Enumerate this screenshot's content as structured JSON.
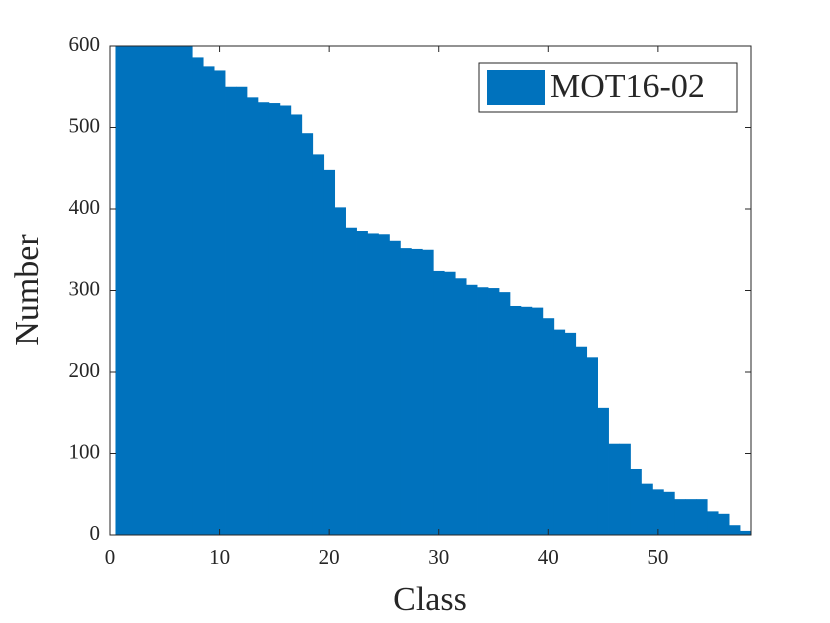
{
  "chart_data": {
    "type": "bar",
    "x_label": "Class",
    "y_label": "Number",
    "x": [
      1,
      2,
      3,
      4,
      5,
      6,
      7,
      8,
      9,
      10,
      11,
      12,
      13,
      14,
      15,
      16,
      17,
      18,
      19,
      20,
      21,
      22,
      23,
      24,
      25,
      26,
      27,
      28,
      29,
      30,
      31,
      32,
      33,
      34,
      35,
      36,
      37,
      38,
      39,
      40,
      41,
      42,
      43,
      44,
      45,
      46,
      47,
      48,
      49,
      50,
      51,
      52,
      53,
      54,
      55,
      56,
      57,
      58
    ],
    "series": [
      {
        "name": "MOT16-02",
        "color": "#0072bd",
        "values": [
          600,
          600,
          600,
          600,
          600,
          600,
          600,
          586,
          575,
          570,
          550,
          550,
          537,
          531,
          530,
          527,
          516,
          493,
          467,
          448,
          402,
          377,
          373,
          370,
          369,
          361,
          352,
          351,
          350,
          324,
          323,
          315,
          307,
          304,
          303,
          298,
          281,
          280,
          279,
          266,
          252,
          248,
          231,
          218,
          156,
          112,
          112,
          81,
          63,
          56,
          53,
          44,
          44,
          44,
          29,
          26,
          12,
          5
        ]
      }
    ],
    "xlim": [
      0,
      58.5
    ],
    "ylim": [
      0,
      600
    ],
    "xticks": [
      0,
      10,
      20,
      30,
      40,
      50
    ],
    "yticks": [
      0,
      100,
      200,
      300,
      400,
      500,
      600
    ],
    "legend": "top-right"
  }
}
